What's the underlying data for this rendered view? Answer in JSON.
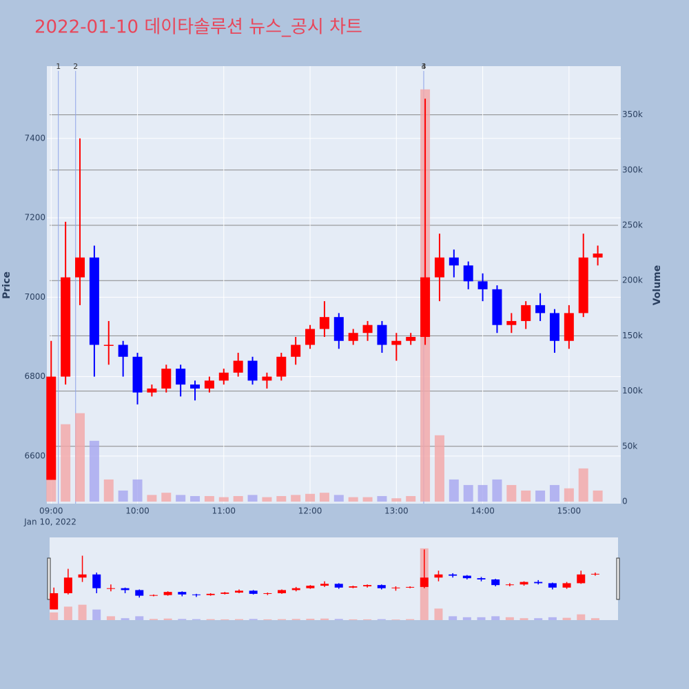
{
  "chart_data": {
    "type": "candlestick",
    "title": "2022-01-10 데이타솔루션 뉴스_공시 차트",
    "y_label": "Price",
    "y2_label": "Volume",
    "x_date_label": "Jan 10, 2022",
    "x": [
      "09:00",
      "09:10",
      "09:20",
      "09:30",
      "09:40",
      "09:50",
      "10:00",
      "10:10",
      "10:20",
      "10:30",
      "10:40",
      "10:50",
      "11:00",
      "11:10",
      "11:20",
      "11:30",
      "11:40",
      "11:50",
      "12:00",
      "12:10",
      "12:20",
      "12:30",
      "12:40",
      "12:50",
      "13:00",
      "13:10",
      "13:20",
      "13:30",
      "13:40",
      "13:50",
      "14:00",
      "14:10",
      "14:20",
      "14:30",
      "14:40",
      "14:50",
      "15:00",
      "15:10",
      "15:20"
    ],
    "open": [
      6540,
      6800,
      7050,
      7100,
      6880,
      6880,
      6850,
      6760,
      6770,
      6820,
      6780,
      6770,
      6790,
      6810,
      6840,
      6790,
      6800,
      6850,
      6880,
      6920,
      6950,
      6890,
      6910,
      6930,
      6880,
      6890,
      6900,
      7050,
      7100,
      7080,
      7040,
      7020,
      6930,
      6940,
      6980,
      6960,
      6890,
      6960,
      7100
    ],
    "high": [
      6890,
      7190,
      7400,
      7130,
      6940,
      6890,
      6860,
      6780,
      6830,
      6830,
      6790,
      6800,
      6820,
      6860,
      6850,
      6810,
      6860,
      6900,
      6930,
      6990,
      6960,
      6920,
      6940,
      6940,
      6910,
      6910,
      7500,
      7160,
      7120,
      7090,
      7060,
      7030,
      6960,
      6990,
      7010,
      6970,
      6980,
      7160,
      7130
    ],
    "low": [
      6540,
      6780,
      6980,
      6800,
      6830,
      6800,
      6730,
      6750,
      6760,
      6750,
      6740,
      6760,
      6780,
      6800,
      6780,
      6770,
      6790,
      6830,
      6870,
      6900,
      6870,
      6880,
      6890,
      6860,
      6840,
      6880,
      6880,
      6990,
      7050,
      7020,
      6990,
      6910,
      6910,
      6920,
      6940,
      6860,
      6870,
      6950,
      7080
    ],
    "close": [
      6800,
      7050,
      7100,
      6880,
      6880,
      6850,
      6760,
      6770,
      6820,
      6780,
      6770,
      6790,
      6810,
      6840,
      6790,
      6800,
      6850,
      6880,
      6920,
      6950,
      6890,
      6910,
      6930,
      6880,
      6890,
      6900,
      7050,
      7100,
      7080,
      7040,
      7020,
      6930,
      6940,
      6980,
      6960,
      6890,
      6960,
      7100,
      7110
    ],
    "volume": [
      40000,
      70000,
      80000,
      55000,
      20000,
      10000,
      20000,
      6000,
      8000,
      6000,
      5000,
      5000,
      4000,
      5000,
      6000,
      4000,
      5000,
      6000,
      7000,
      8000,
      6000,
      4000,
      4000,
      5000,
      3000,
      5000,
      373000,
      60000,
      20000,
      15000,
      15000,
      20000,
      15000,
      10000,
      10000,
      15000,
      12000,
      30000,
      10000
    ],
    "increasing_color": "#ff0000",
    "decreasing_color": "#0000ff",
    "increasing_volume_color": "#f4a6a6",
    "decreasing_volume_color": "#a6a6f0",
    "xlim": [
      "08:57",
      "15:36"
    ],
    "xticks": [
      "09:00",
      "10:00",
      "11:00",
      "12:00",
      "13:00",
      "14:00",
      "15:00"
    ],
    "ylim": [
      6480,
      7582
    ],
    "yticks": [
      6600,
      6800,
      7000,
      7200,
      7400
    ],
    "y2lim": [
      0,
      394000
    ],
    "y2ticks": [
      0,
      {
        "value": 50000,
        "label": "50k"
      },
      {
        "value": 100000,
        "label": "100k"
      },
      {
        "value": 150000,
        "label": "150k"
      },
      {
        "value": 200000,
        "label": "200k"
      },
      {
        "value": 250000,
        "label": "250k"
      },
      {
        "value": 300000,
        "label": "300k"
      },
      {
        "value": 350000,
        "label": "350k"
      }
    ],
    "annotations": [
      {
        "x": "09:05",
        "text": "1"
      },
      {
        "x": "09:17",
        "text": "2"
      },
      {
        "x": "13:19",
        "text": "3"
      },
      {
        "x": "13:19",
        "text": "4"
      }
    ],
    "grid": true,
    "range_slider": true
  }
}
